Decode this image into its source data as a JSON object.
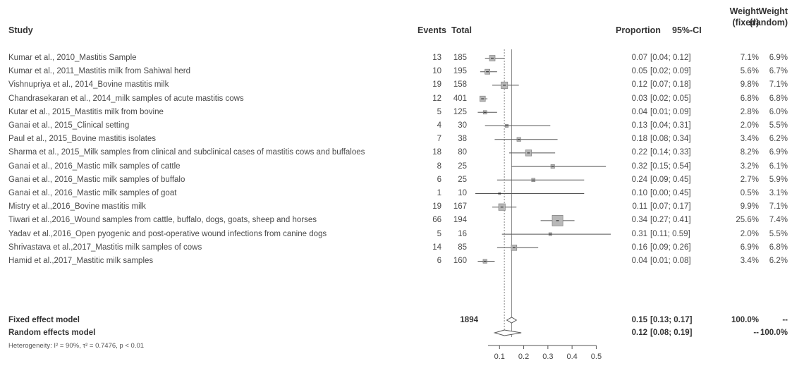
{
  "headers": {
    "study": "Study",
    "events": "Events",
    "total": "Total",
    "proportion": "Proportion",
    "ci": "95%-CI",
    "weight_fixed": [
      "Weight",
      "(fixed)"
    ],
    "weight_random": [
      "Weight",
      "(random)"
    ]
  },
  "rows": [
    {
      "study": "Kumar et al., 2010_Mastitis Sample",
      "events": "13",
      "total": "185",
      "prop": "0.07",
      "ci": "[0.04; 0.12]",
      "wf": "7.1%",
      "wr": "6.9%"
    },
    {
      "study": "Kumar et al., 2011_Mastitis milk from Sahiwal herd",
      "events": "10",
      "total": "195",
      "prop": "0.05",
      "ci": "[0.02; 0.09]",
      "wf": "5.6%",
      "wr": "6.7%"
    },
    {
      "study": "Vishnupriya  et al., 2014_Bovine mastitis milk",
      "events": "19",
      "total": "158",
      "prop": "0.12",
      "ci": "[0.07; 0.18]",
      "wf": "9.8%",
      "wr": "7.1%"
    },
    {
      "study": "Chandrasekaran et al., 2014_milk samples of acute mastitis cows",
      "events": "12",
      "total": "401",
      "prop": "0.03",
      "ci": "[0.02; 0.05]",
      "wf": "6.8%",
      "wr": "6.8%"
    },
    {
      "study": "Kutar et al., 2015_Mastitis milk from bovine",
      "events": "5",
      "total": "125",
      "prop": "0.04",
      "ci": "[0.01; 0.09]",
      "wf": "2.8%",
      "wr": "6.0%"
    },
    {
      "study": "Ganai et al., 2015_Clinical setting",
      "events": "4",
      "total": "30",
      "prop": "0.13",
      "ci": "[0.04; 0.31]",
      "wf": "2.0%",
      "wr": "5.5%"
    },
    {
      "study": "Paul et al., 2015_Bovine mastitis isolates",
      "events": "7",
      "total": "38",
      "prop": "0.18",
      "ci": "[0.08; 0.34]",
      "wf": "3.4%",
      "wr": "6.2%"
    },
    {
      "study": "Sharma et al., 2015_Milk samples from clinical and subclinical cases of mastitis cows and buffaloes",
      "events": "18",
      "total": "80",
      "prop": "0.22",
      "ci": "[0.14; 0.33]",
      "wf": "8.2%",
      "wr": "6.9%"
    },
    {
      "study": "Ganai et al., 2016_Mastic milk samples of cattle",
      "events": "8",
      "total": "25",
      "prop": "0.32",
      "ci": "[0.15; 0.54]",
      "wf": "3.2%",
      "wr": "6.1%"
    },
    {
      "study": "Ganai et al., 2016_Mastic milk samples of buffalo",
      "events": "6",
      "total": "25",
      "prop": "0.24",
      "ci": "[0.09; 0.45]",
      "wf": "2.7%",
      "wr": "5.9%"
    },
    {
      "study": "Ganai et al., 2016_Mastic milk samples of goat",
      "events": "1",
      "total": "10",
      "prop": "0.10",
      "ci": "[0.00; 0.45]",
      "wf": "0.5%",
      "wr": "3.1%"
    },
    {
      "study": "Mistry et al.,2016_Bovine mastitis milk",
      "events": "19",
      "total": "167",
      "prop": "0.11",
      "ci": "[0.07; 0.17]",
      "wf": "9.9%",
      "wr": "7.1%"
    },
    {
      "study": "Tiwari et al.,2016_Wound samples from cattle, buffalo, dogs, goats, sheep and horses",
      "events": "66",
      "total": "194",
      "prop": "0.34",
      "ci": "[0.27; 0.41]",
      "wf": "25.6%",
      "wr": "7.4%"
    },
    {
      "study": "Yadav et al.,2016_Open pyogenic and post-operative wound infections from canine dogs",
      "events": "5",
      "total": "16",
      "prop": "0.31",
      "ci": "[0.11; 0.59]",
      "wf": "2.0%",
      "wr": "5.5%"
    },
    {
      "study": "Shrivastava et al.,2017_Mastitis milk samples of cows",
      "events": "14",
      "total": "85",
      "prop": "0.16",
      "ci": "[0.09; 0.26]",
      "wf": "6.9%",
      "wr": "6.8%"
    },
    {
      "study": "Hamid et al.,2017_Mastitic milk samples",
      "events": "6",
      "total": "160",
      "prop": "0.04",
      "ci": "[0.01; 0.08]",
      "wf": "3.4%",
      "wr": "6.2%"
    }
  ],
  "summary": {
    "fixed": {
      "label": "Fixed effect model",
      "total": "1894",
      "prop": "0.15",
      "ci": "[0.13; 0.17]",
      "wf": "100.0%",
      "wr": "--"
    },
    "random": {
      "label": "Random effects model",
      "prop": "0.12",
      "ci": "[0.08; 0.19]",
      "wf": "--",
      "wr": "100.0%"
    },
    "heterogeneity": "Heterogeneity: I² = 90%, τ² = 0.7476, p < 0.01"
  },
  "chart_data": {
    "type": "forest",
    "xlim": [
      0,
      0.56
    ],
    "ticks": [
      0.1,
      0.2,
      0.3,
      0.4,
      0.5
    ],
    "tick_labels": [
      "0.1",
      "0.2",
      "0.3",
      "0.4",
      "0.5"
    ],
    "fixed_line": 0.15,
    "random_line": 0.12,
    "studies": [
      {
        "est": 0.07,
        "lo": 0.04,
        "hi": 0.12,
        "w": 7.1
      },
      {
        "est": 0.05,
        "lo": 0.02,
        "hi": 0.09,
        "w": 5.6
      },
      {
        "est": 0.12,
        "lo": 0.07,
        "hi": 0.18,
        "w": 9.8
      },
      {
        "est": 0.03,
        "lo": 0.02,
        "hi": 0.05,
        "w": 6.8
      },
      {
        "est": 0.04,
        "lo": 0.01,
        "hi": 0.09,
        "w": 2.8
      },
      {
        "est": 0.13,
        "lo": 0.04,
        "hi": 0.31,
        "w": 2.0
      },
      {
        "est": 0.18,
        "lo": 0.08,
        "hi": 0.34,
        "w": 3.4
      },
      {
        "est": 0.22,
        "lo": 0.14,
        "hi": 0.33,
        "w": 8.2
      },
      {
        "est": 0.32,
        "lo": 0.15,
        "hi": 0.54,
        "w": 3.2
      },
      {
        "est": 0.24,
        "lo": 0.09,
        "hi": 0.45,
        "w": 2.7
      },
      {
        "est": 0.1,
        "lo": 0.0,
        "hi": 0.45,
        "w": 0.5
      },
      {
        "est": 0.11,
        "lo": 0.07,
        "hi": 0.17,
        "w": 9.9
      },
      {
        "est": 0.34,
        "lo": 0.27,
        "hi": 0.41,
        "w": 25.6
      },
      {
        "est": 0.31,
        "lo": 0.11,
        "hi": 0.59,
        "w": 2.0
      },
      {
        "est": 0.16,
        "lo": 0.09,
        "hi": 0.26,
        "w": 6.9
      },
      {
        "est": 0.04,
        "lo": 0.01,
        "hi": 0.08,
        "w": 3.4
      }
    ],
    "fixed": {
      "est": 0.15,
      "lo": 0.13,
      "hi": 0.17
    },
    "random": {
      "est": 0.12,
      "lo": 0.08,
      "hi": 0.19
    }
  }
}
